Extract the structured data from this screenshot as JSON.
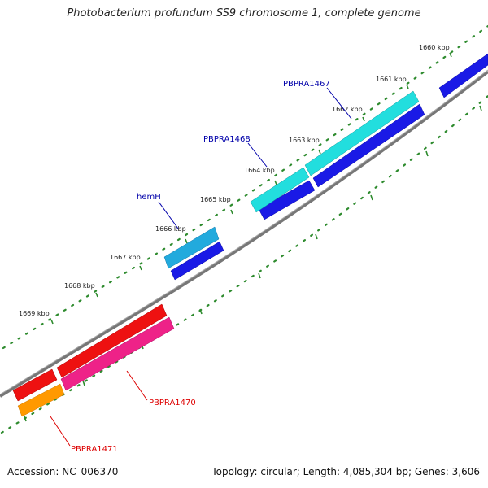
{
  "header": {
    "title": "Photobacterium profundum SS9 chromosome 1, complete genome"
  },
  "footer": {
    "accession": "Accession: NC_006370",
    "topology": "Topology: circular; Length: 4,085,304 bp; Genes: 3,606"
  },
  "ticks": [
    "1660 kbp",
    "1661 kbp",
    "1662 kbp",
    "1663 kbp",
    "1664 kbp",
    "1665 kbp",
    "1666 kbp",
    "1667 kbp",
    "1668 kbp",
    "1669 kbp"
  ],
  "gene_labels": {
    "pbpra1467": "PBPRA1467",
    "pbpra1468": "PBPRA1468",
    "hemh": "hemH",
    "pbpra1470": "PBPRA1470",
    "pbpra1471": "PBPRA1471"
  },
  "colors": {
    "backbone": "#777777",
    "scale_dots": "#2e8b2e",
    "plus_strand_blue": "#1a1ae6",
    "cyan_gene": "#22dede",
    "hemh_gene": "#22aadd",
    "red_gene": "#ee1111",
    "pink_gene": "#ee2288",
    "orange_gene": "#ff9900",
    "label_blue": "#0000aa",
    "label_red": "#dd0000"
  }
}
